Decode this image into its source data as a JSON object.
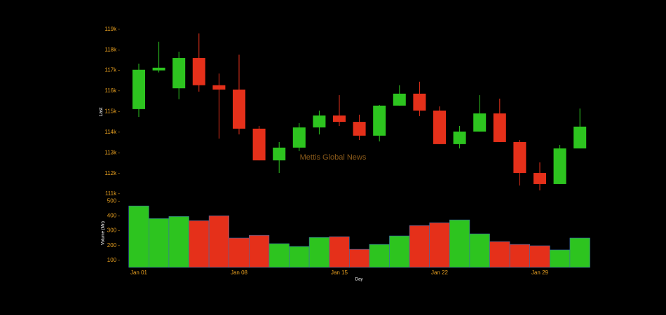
{
  "chart_data": {
    "type": "candlestick",
    "watermark": "Mettis Global News",
    "xlabel": "Day",
    "ylabel": "Last",
    "categories": [
      "Jan 01",
      null,
      null,
      null,
      null,
      "Jan 08",
      null,
      null,
      null,
      null,
      "Jan 15",
      null,
      null,
      null,
      null,
      "Jan 22",
      null,
      null,
      null,
      null,
      "Jan 29",
      null,
      null
    ],
    "open": [
      115120,
      117000,
      116130,
      117600,
      116280,
      116070,
      114170,
      112630,
      113250,
      114230,
      114810,
      114500,
      113830,
      115290,
      115870,
      115050,
      113420,
      114030,
      114910,
      113520,
      112020,
      111480,
      113210
    ],
    "high": [
      117330,
      118390,
      117910,
      118800,
      116850,
      117770,
      114300,
      113520,
      114440,
      115050,
      115800,
      114850,
      115320,
      116280,
      116450,
      115250,
      114300,
      115800,
      115630,
      113620,
      112530,
      113380,
      115150
    ],
    "low": [
      114740,
      116900,
      115600,
      115970,
      113690,
      113890,
      112630,
      112020,
      113080,
      113890,
      114300,
      113620,
      113550,
      115290,
      114780,
      113420,
      113210,
      114030,
      113520,
      111410,
      111170,
      111480,
      113210
    ],
    "close": [
      117030,
      117130,
      117600,
      116280,
      116070,
      114170,
      112630,
      113250,
      114230,
      114810,
      114500,
      113830,
      115290,
      115870,
      115050,
      113420,
      114030,
      114910,
      113520,
      112020,
      111480,
      113210,
      114270
    ],
    "up_color": "#2dc41f",
    "down_color": "#e5301a",
    "ylim": [
      110900,
      119400
    ],
    "yticks": [
      {
        "value": 111000,
        "label": "111k -"
      },
      {
        "value": 112000,
        "label": "112k -"
      },
      {
        "value": 113000,
        "label": "113k -"
      },
      {
        "value": 114000,
        "label": "114k -"
      },
      {
        "value": 115000,
        "label": "115k -"
      },
      {
        "value": 116000,
        "label": "116k -"
      },
      {
        "value": 117000,
        "label": "117k -"
      },
      {
        "value": 118000,
        "label": "118k -"
      },
      {
        "value": 119000,
        "label": "119k -"
      }
    ],
    "volume": {
      "ylabel": "Volume (Mn)",
      "values": [
        467,
        382,
        396,
        368,
        401,
        251,
        269,
        213,
        194,
        255,
        260,
        175,
        208,
        265,
        335,
        354,
        373,
        279,
        227,
        208,
        199,
        171,
        251
      ],
      "ylim": [
        53,
        515
      ],
      "yticks": [
        {
          "value": 100,
          "label": "100 -"
        },
        {
          "value": 200,
          "label": "200 -"
        },
        {
          "value": 300,
          "label": "300 -"
        },
        {
          "value": 400,
          "label": "400 -"
        },
        {
          "value": 500,
          "label": "500 -"
        }
      ]
    }
  }
}
